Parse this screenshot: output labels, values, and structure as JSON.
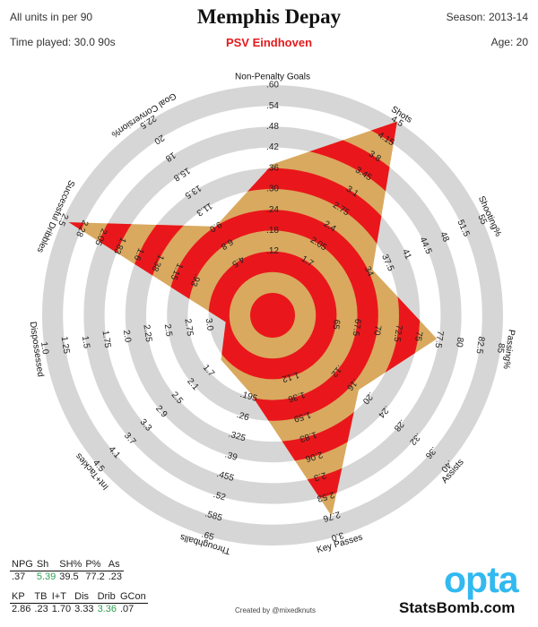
{
  "header": {
    "title": "Memphis Depay",
    "team": "PSV Eindhoven",
    "units_note": "All units in per 90",
    "time_played": "Time played: 30.0 90s",
    "season": "Season: 2013-14",
    "age": "Age: 20"
  },
  "chart_data": {
    "type": "radar",
    "title": "Memphis Depay",
    "subtitle": "PSV Eindhoven",
    "rings": 10,
    "colors": {
      "ring": "#d6d6d6",
      "poly_light": "#d9a95f",
      "poly_dark": "#e9171b",
      "text": "#222222"
    },
    "axes": [
      {
        "label": "Non-Penalty Goals",
        "ticks": [
          ".12",
          ".18",
          ".24",
          ".30",
          ".36",
          ".42",
          ".48",
          ".54",
          ".60"
        ],
        "value_fraction": 0.62
      },
      {
        "label": "Shots",
        "ticks": [
          "1.7",
          "2.05",
          "2.4",
          "2.75",
          "3.1",
          "3.45",
          "3.8",
          "4.15",
          "4.5"
        ],
        "value_fraction": 1.0
      },
      {
        "label": "Shooting%",
        "ticks": [
          "34",
          "37.5",
          "41",
          "44.5",
          "48",
          "51.5",
          "55"
        ],
        "value_fraction": 0.42
      },
      {
        "label": "Passing%",
        "ticks": [
          "65",
          "67.5",
          "70",
          "72.5",
          "75",
          "77.5",
          "80",
          "82.5",
          "85"
        ],
        "value_fraction": 0.69
      },
      {
        "label": "Assists",
        "ticks": [
          ".12",
          ".16",
          ".20",
          ".24",
          ".28",
          ".32",
          ".36",
          ".40"
        ],
        "value_fraction": 0.44
      },
      {
        "label": "Key Passes",
        "ticks": [
          "1.12",
          "1.36",
          "1.59",
          "1.83",
          "2.06",
          "2.3",
          "2.53",
          "2.76",
          "3.0"
        ],
        "value_fraction": 0.9
      },
      {
        "label": "Throughballs",
        "ticks": [
          ".195",
          ".26",
          ".325",
          ".39",
          ".455",
          ".52",
          ".585",
          ".65"
        ],
        "value_fraction": 0.28
      },
      {
        "label": "Int+Tackles",
        "ticks": [
          "1.7",
          "2.1",
          "2.5",
          "2.9",
          "3.3",
          "3.7",
          "4.1",
          "4.5"
        ],
        "value_fraction": 0.22
      },
      {
        "label": "Dispossessed",
        "ticks": [
          "3.0",
          "2.75",
          "2.5",
          "2.25",
          "2.0",
          "1.75",
          "1.5",
          "1.25",
          "1.0"
        ],
        "value_fraction": 0.12
      },
      {
        "label": "Successful Dribbles",
        "ticks": [
          ".93",
          "1.15",
          "1.38",
          "1.6",
          "1.83",
          "2.05",
          "2.28",
          "2.5"
        ],
        "value_fraction": 0.97
      },
      {
        "label": "Goal Conversion%",
        "ticks": [
          "4.5",
          "6.8",
          "9.0",
          "11.3",
          "13.5",
          "15.8",
          "18",
          "20",
          "22.5"
        ],
        "value_fraction": 0.4
      }
    ]
  },
  "stats": {
    "row1": {
      "headers": [
        "NPG",
        "Sh",
        "SH%",
        "P%",
        "As"
      ],
      "values": [
        ".37",
        "5.39",
        "39.5",
        "77.2",
        ".23"
      ],
      "highlight": [
        false,
        true,
        false,
        false,
        false
      ]
    },
    "row2": {
      "headers": [
        "KP",
        "TB",
        "I+T",
        "Dis",
        "Drib",
        "GCon"
      ],
      "values": [
        "2.86",
        ".23",
        "1.70",
        "3.33",
        "3.36",
        ".07"
      ],
      "highlight": [
        false,
        false,
        false,
        false,
        true,
        false
      ]
    }
  },
  "footer": {
    "credit": "Created by @mixedknuts",
    "opta_logo": "opta",
    "statsbomb_logo": "StatsBomb.com"
  }
}
